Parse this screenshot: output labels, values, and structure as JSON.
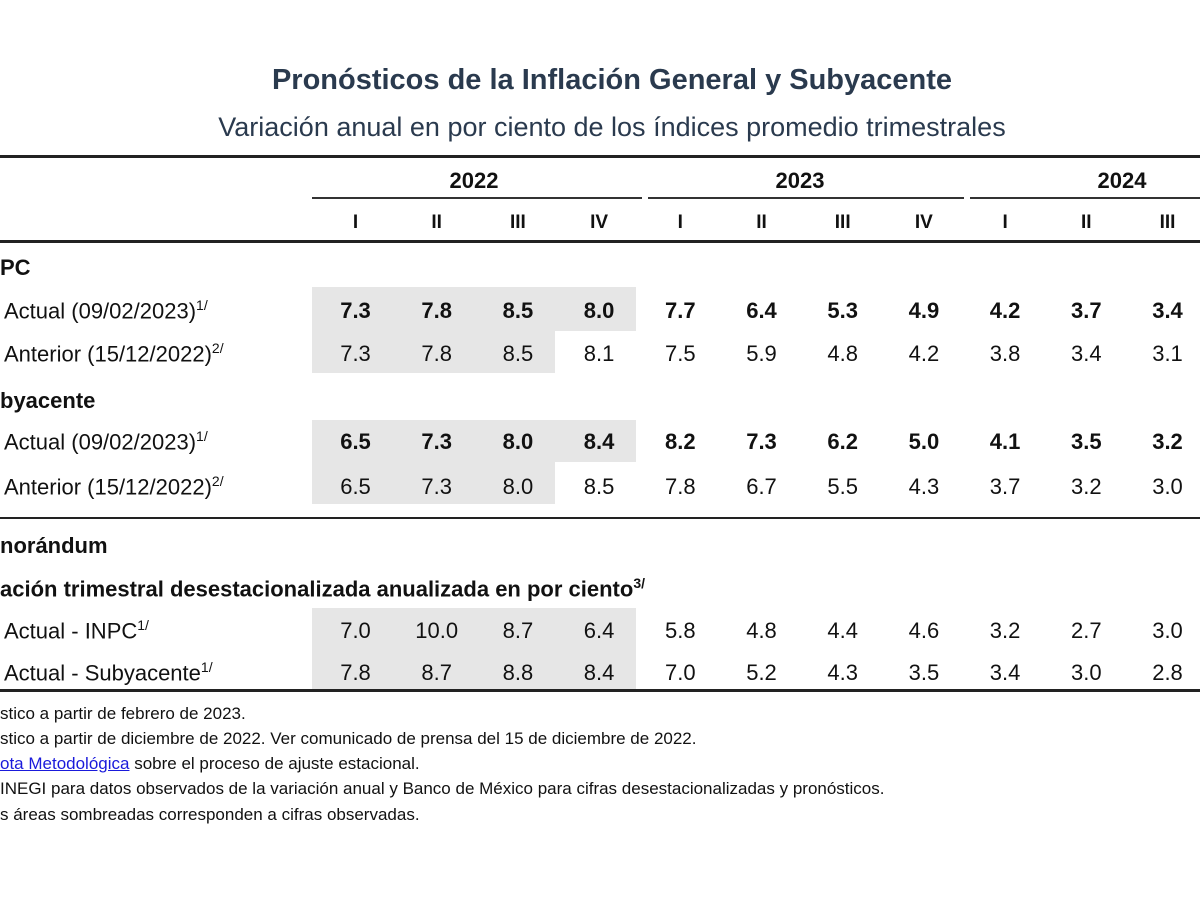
{
  "title": "Pronósticos de la Inflación General y Subyacente",
  "subtitle": "Variación anual en por ciento de los índices promedio trimestrales",
  "years": [
    "2022",
    "2023",
    "2024"
  ],
  "quarters": [
    "I",
    "II",
    "III",
    "IV",
    "I",
    "II",
    "III",
    "IV",
    "I",
    "II",
    "III"
  ],
  "sections": {
    "inpc": "PC",
    "subyacente": "byacente",
    "memorandum": "norándum",
    "variacion": "ación trimestral desestacionalizada anualizada en por ciento",
    "variacion_sup": "3/"
  },
  "rows": [
    {
      "label": "Actual (09/02/2023)",
      "sup": "1/",
      "values": [
        "7.3",
        "7.8",
        "8.5",
        "8.0",
        "7.7",
        "6.4",
        "5.3",
        "4.9",
        "4.2",
        "3.7",
        "3.4"
      ]
    },
    {
      "label": "Anterior (15/12/2022)",
      "sup": "2/",
      "values": [
        "7.3",
        "7.8",
        "8.5",
        "8.1",
        "7.5",
        "5.9",
        "4.8",
        "4.2",
        "3.8",
        "3.4",
        "3.1"
      ]
    },
    {
      "label": "Actual (09/02/2023)",
      "sup": "1/",
      "values": [
        "6.5",
        "7.3",
        "8.0",
        "8.4",
        "8.2",
        "7.3",
        "6.2",
        "5.0",
        "4.1",
        "3.5",
        "3.2"
      ]
    },
    {
      "label": "Anterior (15/12/2022)",
      "sup": "2/",
      "values": [
        "6.5",
        "7.3",
        "8.0",
        "8.5",
        "7.8",
        "6.7",
        "5.5",
        "4.3",
        "3.7",
        "3.2",
        "3.0"
      ]
    },
    {
      "label": "Actual - INPC",
      "sup": "1/",
      "values": [
        "7.0",
        "10.0",
        "8.7",
        "6.4",
        "5.8",
        "4.8",
        "4.4",
        "4.6",
        "3.2",
        "2.7",
        "3.0"
      ]
    },
    {
      "label": "Actual - Subyacente",
      "sup": "1/",
      "values": [
        "7.8",
        "8.7",
        "8.8",
        "8.4",
        "7.0",
        "5.2",
        "4.3",
        "3.5",
        "3.4",
        "3.0",
        "2.8"
      ]
    }
  ],
  "footnotes": {
    "f1": "stico a partir de febrero de 2023.",
    "f2": "stico a partir de diciembre de 2022. Ver comunicado de prensa del 15 de diciembre de 2022.",
    "f3_link": "ota Metodológica",
    "f3_rest": " sobre el proceso de ajuste estacional.",
    "f4": "INEGI para datos observados de la variación anual y Banco de México para cifras desestacionalizadas y pronósticos.",
    "f5": "s áreas sombreadas corresponden a cifras observadas."
  },
  "colors": {
    "title": "#2a3a4e",
    "shade": "#e6e6e6",
    "link": "#1a1adb"
  }
}
